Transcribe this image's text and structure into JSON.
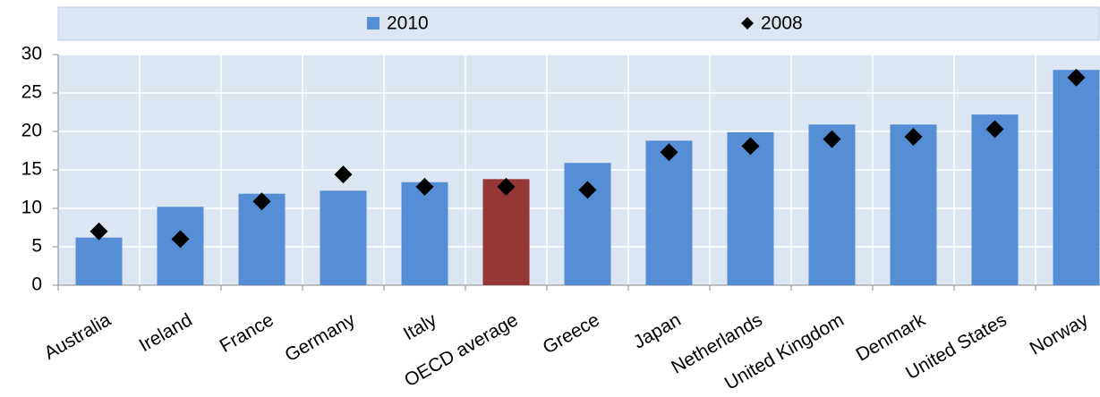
{
  "chart_data": {
    "type": "bar",
    "categories": [
      "Australia",
      "Ireland",
      "France",
      "Germany",
      "Italy",
      "OECD average",
      "Greece",
      "Japan",
      "Netherlands",
      "United Kingdom",
      "Denmark",
      "United States",
      "Norway"
    ],
    "series": [
      {
        "name": "2010",
        "type": "bar",
        "color": "#558ed5",
        "colors": [
          "#558ed5",
          "#558ed5",
          "#558ed5",
          "#558ed5",
          "#558ed5",
          "#953735",
          "#558ed5",
          "#558ed5",
          "#558ed5",
          "#558ed5",
          "#558ed5",
          "#558ed5",
          "#558ed5"
        ],
        "values": [
          6.2,
          10.2,
          11.9,
          12.3,
          13.4,
          13.8,
          15.9,
          18.8,
          19.9,
          20.9,
          20.9,
          22.2,
          28.0
        ]
      },
      {
        "name": "2008",
        "type": "diamond",
        "color": "#000000",
        "values": [
          7.0,
          6.0,
          10.9,
          14.4,
          12.8,
          12.8,
          12.4,
          17.3,
          18.1,
          19.0,
          19.3,
          20.3,
          27.0
        ]
      }
    ],
    "ylim": [
      0,
      30
    ],
    "yticks": [
      0,
      5,
      10,
      15,
      20,
      25,
      30
    ],
    "grid": true
  }
}
